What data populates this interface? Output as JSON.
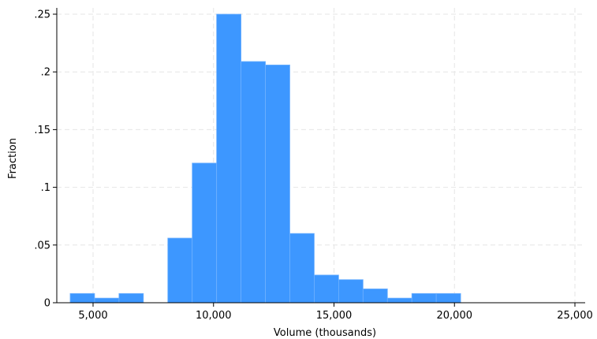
{
  "chart_data": {
    "type": "bar",
    "subtype": "histogram",
    "xlabel": "Volume (thousands)",
    "ylabel": "Fraction",
    "xlim": [
      3000,
      25000
    ],
    "ylim": [
      0,
      0.26
    ],
    "x_ticks": [
      5000,
      10000,
      15000,
      20000,
      25000
    ],
    "x_tick_labels": [
      "5,000",
      "10,000",
      "15,000",
      "20,000",
      "25,000"
    ],
    "y_ticks": [
      0,
      0.05,
      0.1,
      0.15,
      0.2,
      0.25
    ],
    "y_tick_labels": [
      "0",
      ".05",
      ".1",
      ".15",
      ".2",
      ".25"
    ],
    "grid": true,
    "bar_color": "#3d97ff",
    "bins": [
      {
        "x0": 4050,
        "x1": 5063,
        "value": 0.008
      },
      {
        "x0": 5063,
        "x1": 6076,
        "value": 0.004
      },
      {
        "x0": 6076,
        "x1": 7089,
        "value": 0.008
      },
      {
        "x0": 7089,
        "x1": 8102,
        "value": 0.0
      },
      {
        "x0": 8102,
        "x1": 9115,
        "value": 0.056
      },
      {
        "x0": 9115,
        "x1": 10128,
        "value": 0.121
      },
      {
        "x0": 10128,
        "x1": 11141,
        "value": 0.25
      },
      {
        "x0": 11141,
        "x1": 12154,
        "value": 0.209
      },
      {
        "x0": 12154,
        "x1": 13167,
        "value": 0.206
      },
      {
        "x0": 13167,
        "x1": 14180,
        "value": 0.06
      },
      {
        "x0": 14180,
        "x1": 15193,
        "value": 0.024
      },
      {
        "x0": 15193,
        "x1": 16206,
        "value": 0.02
      },
      {
        "x0": 16206,
        "x1": 17219,
        "value": 0.012
      },
      {
        "x0": 17219,
        "x1": 18232,
        "value": 0.004
      },
      {
        "x0": 18232,
        "x1": 19245,
        "value": 0.008
      },
      {
        "x0": 19245,
        "x1": 20258,
        "value": 0.008
      }
    ]
  }
}
